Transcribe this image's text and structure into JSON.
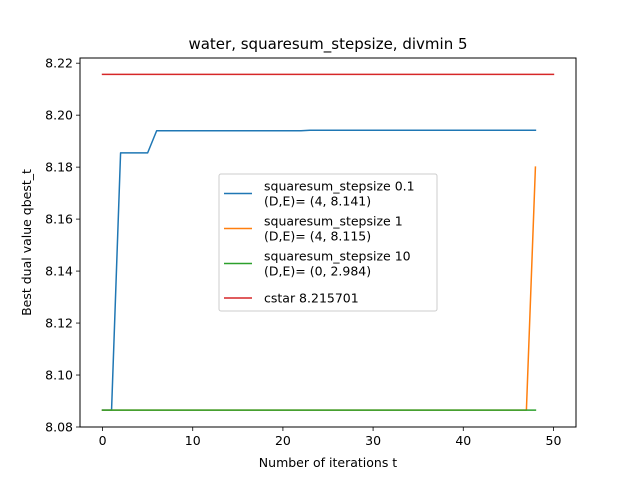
{
  "chart_data": {
    "type": "line",
    "title": "water, squaresum_stepsize, divmin 5",
    "xlabel": "Number of iterations t",
    "ylabel": "Best dual value qbest_t",
    "xlim": [
      -2.5,
      52.5
    ],
    "ylim": [
      8.08,
      8.222
    ],
    "xticks": [
      0,
      10,
      20,
      30,
      40,
      50
    ],
    "yticks": [
      8.08,
      8.1,
      8.12,
      8.14,
      8.16,
      8.18,
      8.2,
      8.22
    ],
    "xtick_labels": [
      "0",
      "10",
      "20",
      "30",
      "40",
      "50"
    ],
    "ytick_labels": [
      "8.08",
      "8.10",
      "8.12",
      "8.14",
      "8.16",
      "8.18",
      "8.20",
      "8.22"
    ],
    "grid": false,
    "legend_position": "center",
    "series": [
      {
        "name": "squaresum_stepsize 0.1\n(D,E)= (4, 8.141)",
        "color": "#1f77b4",
        "x": [
          0,
          1,
          2,
          5,
          6,
          22,
          23,
          48
        ],
        "y": [
          8.0865,
          8.0865,
          8.1855,
          8.1855,
          8.194,
          8.194,
          8.1942,
          8.1942
        ]
      },
      {
        "name": "squaresum_stepsize 1\n(D,E)= (4, 8.115)",
        "color": "#ff7f0e",
        "x": [
          0,
          47,
          48
        ],
        "y": [
          8.0865,
          8.0865,
          8.18
        ]
      },
      {
        "name": "squaresum_stepsize 10\n(D,E)= (0, 2.984)",
        "color": "#2ca02c",
        "x": [
          0,
          48
        ],
        "y": [
          8.0865,
          8.0865
        ]
      },
      {
        "name": "cstar 8.215701",
        "color": "#d62728",
        "x": [
          0,
          50
        ],
        "y": [
          8.2157,
          8.2157
        ]
      }
    ]
  }
}
